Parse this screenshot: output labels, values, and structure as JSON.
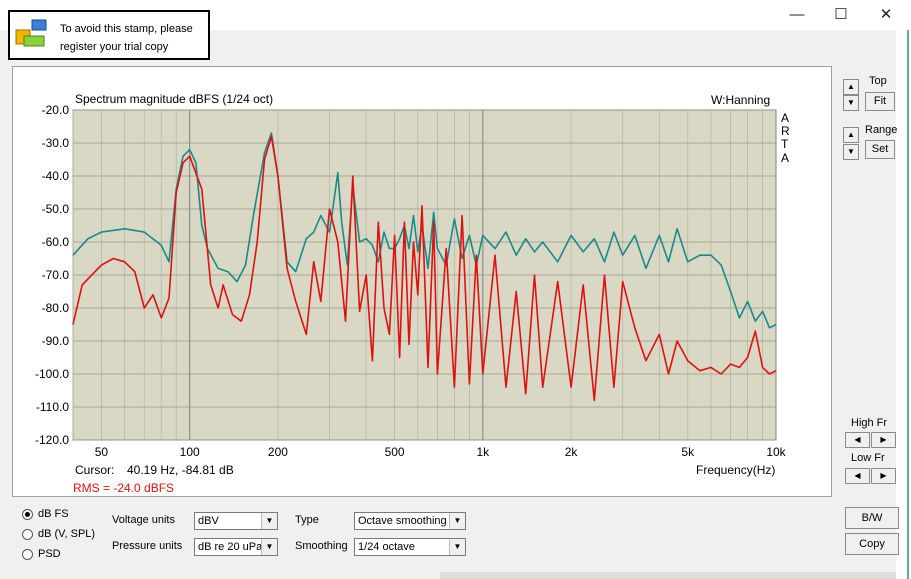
{
  "window": {
    "minimize": "—",
    "maximize": "☐",
    "close": "✕"
  },
  "stamp": {
    "line1": "To avoid this stamp, please",
    "line2": "register your trial copy"
  },
  "chart": {
    "title": "Spectrum magnitude dBFS (1/24 oct)",
    "window_fn": "W:Hanning",
    "brand": [
      "A",
      "R",
      "T",
      "A"
    ],
    "cursor_label": "Cursor:",
    "cursor_value": "40.19 Hz, -84.81 dB",
    "rms": "RMS =  -24.0 dBFS",
    "xlabel": "Frequency(Hz)"
  },
  "chart_data": {
    "type": "line",
    "title": "Spectrum magnitude dBFS (1/24 oct)",
    "xlabel": "Frequency(Hz)",
    "ylabel": "",
    "xscale": "log",
    "xlim": [
      40,
      10000
    ],
    "ylim": [
      -120,
      -20
    ],
    "x_ticks": [
      {
        "v": 50,
        "t": "50"
      },
      {
        "v": 100,
        "t": "100"
      },
      {
        "v": 200,
        "t": "200"
      },
      {
        "v": 500,
        "t": "500"
      },
      {
        "v": 1000,
        "t": "1k"
      },
      {
        "v": 2000,
        "t": "2k"
      },
      {
        "v": 5000,
        "t": "5k"
      },
      {
        "v": 10000,
        "t": "10k"
      }
    ],
    "y_ticks": [
      -20,
      -30,
      -40,
      -50,
      -60,
      -70,
      -80,
      -90,
      -100,
      -110,
      -120
    ],
    "y_tick_labels": [
      "-20.0",
      "-30.0",
      "-40.0",
      "-50.0",
      "-60.0",
      "-70.0",
      "-80.0",
      "-90.0",
      "-100.0",
      "-110.0",
      "-120.0"
    ],
    "grid": true,
    "background": "#d8d8c4",
    "series": [
      {
        "color": "#1a8a8a",
        "points": [
          [
            40,
            -64
          ],
          [
            45,
            -59
          ],
          [
            50,
            -57
          ],
          [
            60,
            -56
          ],
          [
            70,
            -57
          ],
          [
            80,
            -61
          ],
          [
            85,
            -66
          ],
          [
            90,
            -44
          ],
          [
            95,
            -34
          ],
          [
            100,
            -32
          ],
          [
            105,
            -36
          ],
          [
            110,
            -55
          ],
          [
            115,
            -62
          ],
          [
            125,
            -68
          ],
          [
            135,
            -69
          ],
          [
            145,
            -72
          ],
          [
            155,
            -67
          ],
          [
            165,
            -52
          ],
          [
            180,
            -33
          ],
          [
            190,
            -27
          ],
          [
            200,
            -40
          ],
          [
            215,
            -66
          ],
          [
            230,
            -69
          ],
          [
            250,
            -59
          ],
          [
            265,
            -57
          ],
          [
            280,
            -52
          ],
          [
            300,
            -57
          ],
          [
            310,
            -48
          ],
          [
            320,
            -39
          ],
          [
            330,
            -54
          ],
          [
            345,
            -67
          ],
          [
            360,
            -43
          ],
          [
            380,
            -60
          ],
          [
            400,
            -59
          ],
          [
            420,
            -61
          ],
          [
            440,
            -66
          ],
          [
            460,
            -57
          ],
          [
            480,
            -62
          ],
          [
            500,
            -62
          ],
          [
            520,
            -59
          ],
          [
            540,
            -55
          ],
          [
            560,
            -62
          ],
          [
            580,
            -52
          ],
          [
            600,
            -63
          ],
          [
            620,
            -55
          ],
          [
            650,
            -68
          ],
          [
            680,
            -51
          ],
          [
            700,
            -62
          ],
          [
            750,
            -67
          ],
          [
            800,
            -53
          ],
          [
            850,
            -65
          ],
          [
            900,
            -58
          ],
          [
            950,
            -67
          ],
          [
            1000,
            -58
          ],
          [
            1100,
            -62
          ],
          [
            1200,
            -57
          ],
          [
            1300,
            -64
          ],
          [
            1400,
            -59
          ],
          [
            1500,
            -63
          ],
          [
            1600,
            -60
          ],
          [
            1800,
            -66
          ],
          [
            2000,
            -58
          ],
          [
            2200,
            -63
          ],
          [
            2400,
            -59
          ],
          [
            2600,
            -66
          ],
          [
            2800,
            -57
          ],
          [
            3000,
            -64
          ],
          [
            3300,
            -58
          ],
          [
            3600,
            -68
          ],
          [
            4000,
            -58
          ],
          [
            4300,
            -66
          ],
          [
            4600,
            -56
          ],
          [
            5000,
            -66
          ],
          [
            5500,
            -64
          ],
          [
            6000,
            -64
          ],
          [
            6500,
            -67
          ],
          [
            7000,
            -75
          ],
          [
            7500,
            -83
          ],
          [
            8000,
            -78
          ],
          [
            8500,
            -84
          ],
          [
            9000,
            -81
          ],
          [
            9500,
            -86
          ],
          [
            10000,
            -85
          ]
        ]
      },
      {
        "color": "#e01010",
        "points": [
          [
            40,
            -85
          ],
          [
            43,
            -73
          ],
          [
            50,
            -67
          ],
          [
            55,
            -65
          ],
          [
            60,
            -66
          ],
          [
            65,
            -69
          ],
          [
            70,
            -80
          ],
          [
            75,
            -76
          ],
          [
            80,
            -83
          ],
          [
            85,
            -77
          ],
          [
            90,
            -45
          ],
          [
            95,
            -36
          ],
          [
            100,
            -34
          ],
          [
            110,
            -44
          ],
          [
            118,
            -73
          ],
          [
            125,
            -80
          ],
          [
            130,
            -73
          ],
          [
            140,
            -82
          ],
          [
            150,
            -84
          ],
          [
            160,
            -76
          ],
          [
            170,
            -60
          ],
          [
            180,
            -35
          ],
          [
            190,
            -28
          ],
          [
            200,
            -40
          ],
          [
            215,
            -68
          ],
          [
            230,
            -78
          ],
          [
            250,
            -88
          ],
          [
            265,
            -66
          ],
          [
            280,
            -78
          ],
          [
            300,
            -50
          ],
          [
            320,
            -60
          ],
          [
            340,
            -84
          ],
          [
            360,
            -40
          ],
          [
            380,
            -81
          ],
          [
            400,
            -70
          ],
          [
            420,
            -96
          ],
          [
            440,
            -54
          ],
          [
            460,
            -80
          ],
          [
            480,
            -88
          ],
          [
            500,
            -58
          ],
          [
            520,
            -95
          ],
          [
            540,
            -54
          ],
          [
            560,
            -91
          ],
          [
            580,
            -60
          ],
          [
            600,
            -76
          ],
          [
            620,
            -49
          ],
          [
            650,
            -98
          ],
          [
            680,
            -54
          ],
          [
            700,
            -100
          ],
          [
            750,
            -62
          ],
          [
            800,
            -104
          ],
          [
            850,
            -52
          ],
          [
            900,
            -103
          ],
          [
            950,
            -64
          ],
          [
            1000,
            -100
          ],
          [
            1100,
            -64
          ],
          [
            1200,
            -104
          ],
          [
            1300,
            -75
          ],
          [
            1400,
            -106
          ],
          [
            1500,
            -70
          ],
          [
            1600,
            -104
          ],
          [
            1800,
            -72
          ],
          [
            2000,
            -104
          ],
          [
            2200,
            -73
          ],
          [
            2400,
            -108
          ],
          [
            2600,
            -70
          ],
          [
            2800,
            -104
          ],
          [
            3000,
            -72
          ],
          [
            3300,
            -86
          ],
          [
            3600,
            -96
          ],
          [
            4000,
            -88
          ],
          [
            4300,
            -100
          ],
          [
            4600,
            -90
          ],
          [
            5000,
            -96
          ],
          [
            5500,
            -99
          ],
          [
            6000,
            -98
          ],
          [
            6500,
            -100
          ],
          [
            7000,
            -97
          ],
          [
            7500,
            -98
          ],
          [
            8000,
            -95
          ],
          [
            8500,
            -87
          ],
          [
            9000,
            -98
          ],
          [
            9500,
            -100
          ],
          [
            10000,
            -99
          ]
        ]
      }
    ]
  },
  "side": {
    "top": "Top",
    "fit": "Fit",
    "range": "Range",
    "set": "Set",
    "highfr": "High Fr",
    "lowfr": "Low Fr",
    "bw": "B/W",
    "copy": "Copy",
    "up": "▲",
    "down": "▼",
    "left": "◀",
    "right": "▶"
  },
  "radios": [
    {
      "label": "dB FS",
      "on": true
    },
    {
      "label": "dB (V, SPL)",
      "on": false
    },
    {
      "label": "PSD",
      "on": false
    }
  ],
  "controls": {
    "voltage_label": "Voltage units",
    "voltage_value": "dBV",
    "pressure_label": "Pressure units",
    "pressure_value": "dB re 20 uPa",
    "type_label": "Type",
    "type_value": "Octave smoothing",
    "smoothing_label": "Smoothing",
    "smoothing_value": "1/24 octave",
    "dd": "▼"
  }
}
